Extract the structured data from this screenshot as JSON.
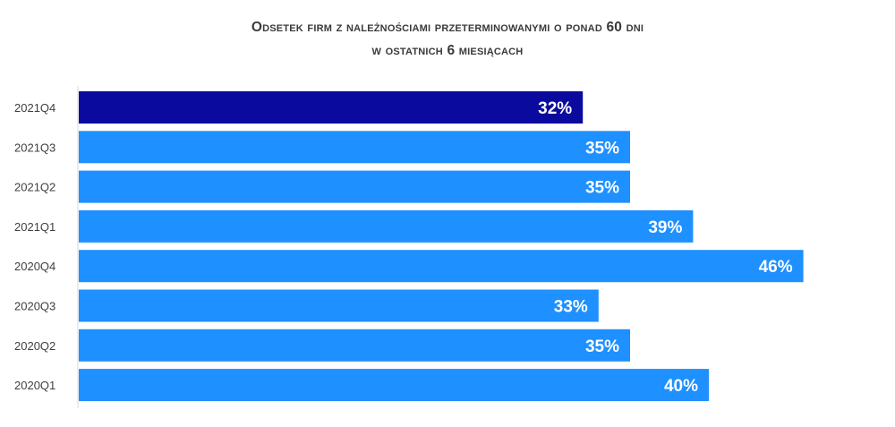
{
  "chart_data": {
    "type": "bar",
    "orientation": "horizontal",
    "title": "Odsetek firm z należnościami przeterminowanymi o ponad 60 dni",
    "subtitle": "w ostatnich 6 miesiącach",
    "categories": [
      "2021Q4",
      "2021Q3",
      "2021Q2",
      "2021Q1",
      "2020Q4",
      "2020Q3",
      "2020Q2",
      "2020Q1"
    ],
    "values": [
      32,
      35,
      35,
      39,
      46,
      33,
      35,
      40
    ],
    "value_labels": [
      "32%",
      "35%",
      "35%",
      "39%",
      "46%",
      "33%",
      "35%",
      "40%"
    ],
    "highlight_category": "2021Q4",
    "colors": {
      "highlight": "#0A0A9E",
      "default": "#1E90FF",
      "label": "#FFFFFF"
    },
    "xlim": [
      0,
      100
    ],
    "grid": false,
    "legend": "none"
  }
}
